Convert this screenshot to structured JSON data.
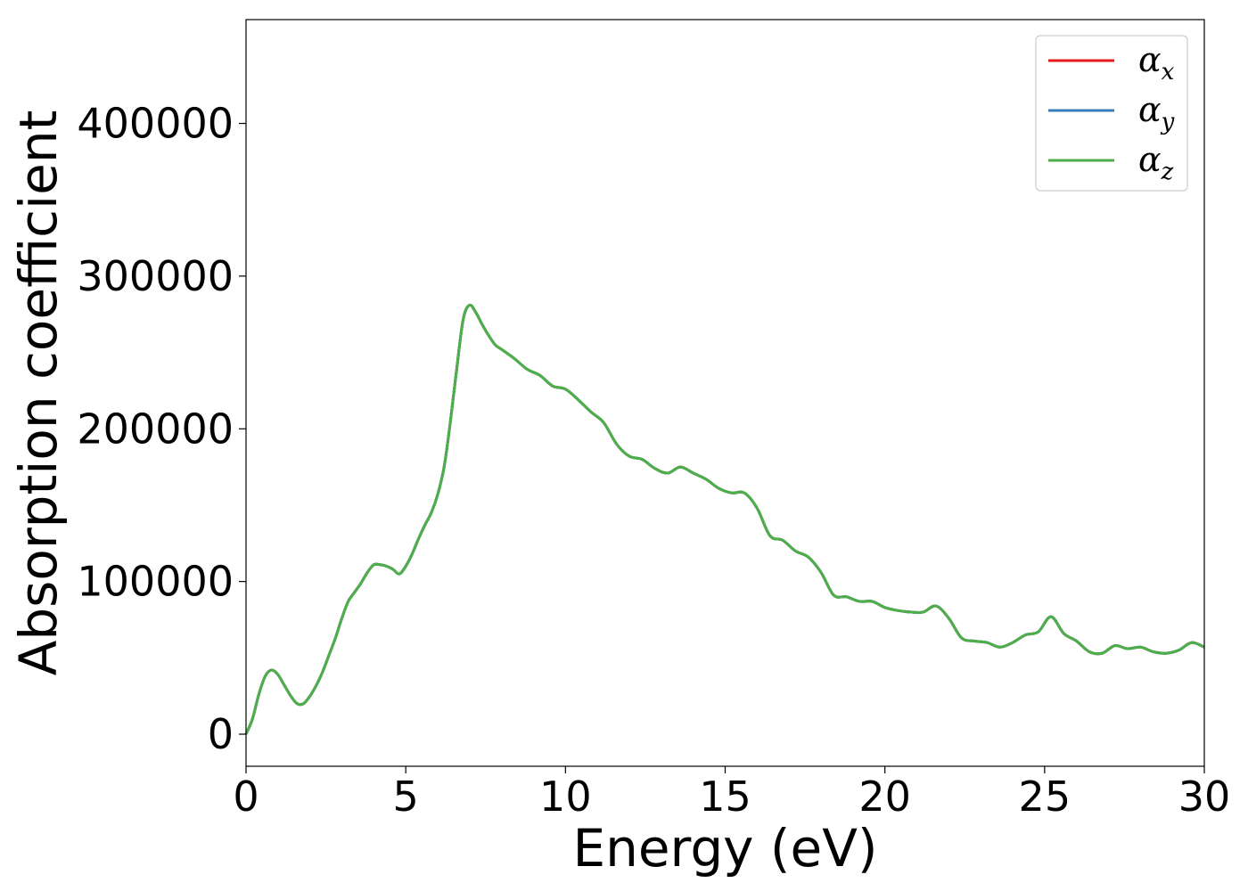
{
  "chart_data": {
    "type": "line",
    "title": "",
    "xlabel": "Energy (eV)",
    "ylabel": "Absorption coefficient",
    "xlim": [
      0,
      30
    ],
    "ylim": [
      -21000,
      468000
    ],
    "xticks": [
      0,
      5,
      10,
      15,
      20,
      25,
      30
    ],
    "yticks": [
      0,
      100000,
      200000,
      300000,
      400000
    ],
    "grid": false,
    "legend_position": "top-right",
    "colors": {
      "alpha_x": "#e41a1c",
      "alpha_y": "#377eb8",
      "alpha_z": "#4daf4a"
    },
    "legend": [
      {
        "symbol": "α",
        "subscript": "x"
      },
      {
        "symbol": "α",
        "subscript": "y"
      },
      {
        "symbol": "α",
        "subscript": "z"
      }
    ],
    "x": [
      0,
      0.2,
      0.4,
      0.6,
      0.8,
      1.0,
      1.2,
      1.4,
      1.6,
      1.8,
      2.0,
      2.2,
      2.4,
      2.6,
      2.8,
      3.0,
      3.2,
      3.4,
      3.6,
      3.8,
      4.0,
      4.2,
      4.4,
      4.6,
      4.8,
      5.0,
      5.2,
      5.4,
      5.6,
      5.8,
      6.0,
      6.2,
      6.4,
      6.6,
      6.8,
      7.0,
      7.2,
      7.4,
      7.6,
      7.8,
      8.0,
      8.4,
      8.8,
      9.2,
      9.6,
      10.0,
      10.4,
      10.8,
      11.2,
      11.6,
      12.0,
      12.4,
      12.8,
      13.2,
      13.6,
      14.0,
      14.4,
      14.8,
      15.2,
      15.6,
      16.0,
      16.4,
      16.8,
      17.2,
      17.6,
      18.0,
      18.4,
      18.8,
      19.2,
      19.6,
      20.0,
      20.4,
      20.8,
      21.2,
      21.6,
      22.0,
      22.4,
      22.8,
      23.2,
      23.6,
      24.0,
      24.4,
      24.8,
      25.2,
      25.6,
      26.0,
      26.4,
      26.8,
      27.2,
      27.6,
      28.0,
      28.4,
      28.8,
      29.2,
      29.6,
      30.0
    ],
    "series": [
      {
        "name": "α_x",
        "values": [
          0,
          10000,
          26000,
          38000,
          42000,
          39000,
          32000,
          25000,
          20000,
          20000,
          25000,
          32000,
          41000,
          52000,
          63000,
          76000,
          87000,
          93000,
          99000,
          106000,
          111000,
          111000,
          110000,
          108000,
          105000,
          110000,
          118000,
          128000,
          137000,
          145000,
          157000,
          175000,
          205000,
          240000,
          272000,
          281000,
          276000,
          268000,
          261000,
          255000,
          252000,
          246000,
          239000,
          235000,
          228000,
          226000,
          219000,
          211000,
          204000,
          190000,
          182000,
          180000,
          174000,
          171000,
          175000,
          171000,
          167000,
          161000,
          158000,
          158000,
          148000,
          130000,
          127000,
          120000,
          116000,
          106000,
          91000,
          90000,
          87000,
          87000,
          83000,
          81000,
          80000,
          80000,
          84000,
          76000,
          63000,
          61000,
          60000,
          57000,
          60000,
          65000,
          67000,
          77000,
          66000,
          61000,
          54000,
          53000,
          58000,
          56000,
          57000,
          54000,
          53000,
          55000,
          60000,
          57000
        ]
      },
      {
        "name": "α_y",
        "values": [
          0,
          10000,
          26000,
          38000,
          42000,
          39000,
          32000,
          25000,
          20000,
          20000,
          25000,
          32000,
          41000,
          52000,
          63000,
          76000,
          87000,
          93000,
          99000,
          106000,
          111000,
          111000,
          110000,
          108000,
          105000,
          110000,
          118000,
          128000,
          137000,
          145000,
          157000,
          175000,
          205000,
          240000,
          272000,
          281000,
          276000,
          268000,
          261000,
          255000,
          252000,
          246000,
          239000,
          235000,
          228000,
          226000,
          219000,
          211000,
          204000,
          190000,
          182000,
          180000,
          174000,
          171000,
          175000,
          171000,
          167000,
          161000,
          158000,
          158000,
          148000,
          130000,
          127000,
          120000,
          116000,
          106000,
          91000,
          90000,
          87000,
          87000,
          83000,
          81000,
          80000,
          80000,
          84000,
          76000,
          63000,
          61000,
          60000,
          57000,
          60000,
          65000,
          67000,
          77000,
          66000,
          61000,
          54000,
          53000,
          58000,
          56000,
          57000,
          54000,
          53000,
          55000,
          60000,
          57000
        ]
      },
      {
        "name": "α_z",
        "values": [
          0,
          10000,
          26000,
          38000,
          42000,
          39000,
          32000,
          25000,
          20000,
          20000,
          25000,
          32000,
          41000,
          52000,
          63000,
          76000,
          87000,
          93000,
          99000,
          106000,
          111000,
          111000,
          110000,
          108000,
          105000,
          110000,
          118000,
          128000,
          137000,
          145000,
          157000,
          175000,
          205000,
          240000,
          272000,
          281000,
          276000,
          268000,
          261000,
          255000,
          252000,
          246000,
          239000,
          235000,
          228000,
          226000,
          219000,
          211000,
          204000,
          190000,
          182000,
          180000,
          174000,
          171000,
          175000,
          171000,
          167000,
          161000,
          158000,
          158000,
          148000,
          130000,
          127000,
          120000,
          116000,
          106000,
          91000,
          90000,
          87000,
          87000,
          83000,
          81000,
          80000,
          80000,
          84000,
          76000,
          63000,
          61000,
          60000,
          57000,
          60000,
          65000,
          67000,
          77000,
          66000,
          61000,
          54000,
          53000,
          58000,
          56000,
          57000,
          54000,
          53000,
          55000,
          60000,
          57000
        ]
      }
    ]
  }
}
